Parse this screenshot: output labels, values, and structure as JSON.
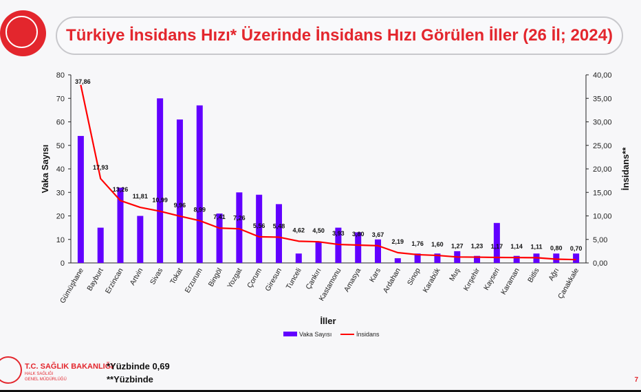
{
  "header": {
    "title": "Türkiye İnsidans Hızı* Üzerinde İnsidans Hızı Görülen İller (26 İl; 2024)"
  },
  "footer": {
    "org": "T.C. SAĞLIK BAKANLIĞI",
    "dept_line1": "HALK SAĞLIĞI",
    "dept_line2": "GENEL MÜDÜRLÜĞÜ",
    "note1": "*Yüzbinde 0,69",
    "note2": "**Yüzbinde",
    "page": "7"
  },
  "colors": {
    "brand": "#e3262d",
    "bar": "#6200ff",
    "line": "#ff0000"
  },
  "chart_data": {
    "type": "bar+line",
    "xlabel": "İller",
    "ylabel": "Vaka Sayısı",
    "y2label": "İnsidans**",
    "ylim": [
      0,
      80
    ],
    "yticks": [
      "0",
      "10",
      "20",
      "30",
      "40",
      "50",
      "60",
      "70",
      "80"
    ],
    "y2lim": [
      0,
      40
    ],
    "y2ticks": [
      "0,00",
      "5,00",
      "10,00",
      "15,00",
      "20,00",
      "25,00",
      "30,00",
      "35,00",
      "40,00"
    ],
    "legend": "bottom-center",
    "grid": false,
    "categories": [
      "Gümüşhane",
      "Bayburt",
      "Erzincan",
      "Artvin",
      "Sivas",
      "Tokat",
      "Erzurum",
      "Bingöl",
      "Yozgat",
      "Çorum",
      "Giresun",
      "Tunceli",
      "Çankırı",
      "Kastamonu",
      "Amasya",
      "Kars",
      "Ardahan",
      "Sinop",
      "Karabük",
      "Muş",
      "Kırşehir",
      "Kayseri",
      "Karaman",
      "Bitlis",
      "Ağrı",
      "Çanakkale"
    ],
    "series": [
      {
        "name": "Vaka Sayısı",
        "type": "bar",
        "axis": "left",
        "values": [
          54,
          15,
          32,
          20,
          70,
          61,
          67,
          21,
          30,
          29,
          25,
          4,
          9,
          15,
          13,
          10,
          2,
          4,
          4,
          5,
          3,
          17,
          3,
          4,
          4,
          4
        ]
      },
      {
        "name": "İnsidans",
        "type": "line",
        "axis": "right",
        "values": [
          37.86,
          17.93,
          13.26,
          11.81,
          10.99,
          9.96,
          8.99,
          7.41,
          7.26,
          5.56,
          5.48,
          4.62,
          4.5,
          3.93,
          3.8,
          3.67,
          2.19,
          1.76,
          1.6,
          1.27,
          1.23,
          1.17,
          1.14,
          1.11,
          0.8,
          0.7
        ],
        "labels": [
          "37,86",
          "17,93",
          "13,26",
          "11,81",
          "10,99",
          "9,96",
          "8,99",
          "7,41",
          "7,26",
          "5,56",
          "5,48",
          "4,62",
          "4,50",
          "3,93",
          "3,80",
          "3,67",
          "2,19",
          "1,76",
          "1,60",
          "1,27",
          "1,23",
          "1,17",
          "1,14",
          "1,11",
          "0,80",
          "0,70"
        ]
      }
    ]
  }
}
